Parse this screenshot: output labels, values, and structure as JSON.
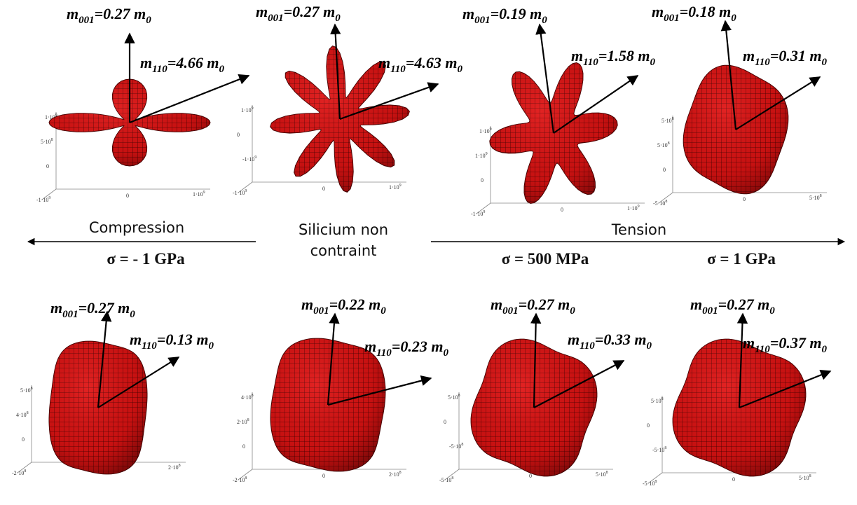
{
  "panels": [
    {
      "m001": {
        "symbol": "m",
        "index": "001",
        "value": "=0.27 ",
        "unit": "m",
        "unit_index": "0"
      },
      "m110": {
        "symbol": "m",
        "index": "110",
        "value": "=4.66 ",
        "unit": "m",
        "unit_index": "0"
      },
      "ticks": [
        {
          "text": "1·10",
          "exp": "9"
        },
        {
          "text": "5·10",
          "exp": "8"
        },
        "0",
        {
          "text": "-1·10",
          "exp": "9"
        },
        "0",
        {
          "text": "1·10",
          "exp": "9"
        }
      ]
    },
    {
      "m001": {
        "symbol": "m",
        "index": "001",
        "value": "=0.27 ",
        "unit": "m",
        "unit_index": "0"
      },
      "m110": {
        "symbol": "m",
        "index": "110",
        "value": "=4.63 ",
        "unit": "m",
        "unit_index": "0"
      },
      "ticks": [
        {
          "text": "1·10",
          "exp": "9"
        },
        "0",
        {
          "text": "-1·10",
          "exp": "9"
        },
        {
          "text": "-1·10",
          "exp": "9"
        },
        "0",
        {
          "text": "1·10",
          "exp": "9"
        }
      ]
    },
    {
      "m001": {
        "symbol": "m",
        "index": "001",
        "value": "=0.19 ",
        "unit": "m",
        "unit_index": "0"
      },
      "m110": {
        "symbol": "m",
        "index": "110",
        "value": "=1.58 ",
        "unit": "m",
        "unit_index": "0"
      },
      "ticks": [
        {
          "text": "1·10",
          "exp": "9"
        },
        {
          "text": "1·10",
          "exp": "9"
        },
        "0",
        {
          "text": "-1·10",
          "exp": "9"
        },
        "0",
        {
          "text": "1·10",
          "exp": "9"
        }
      ]
    },
    {
      "m001": {
        "symbol": "m",
        "index": "001",
        "value": "=0.18 ",
        "unit": "m",
        "unit_index": "0"
      },
      "m110": {
        "symbol": "m",
        "index": "110",
        "value": "=0.31 ",
        "unit": "m",
        "unit_index": "0"
      },
      "ticks": [
        {
          "text": "5·10",
          "exp": "8"
        },
        {
          "text": "5·10",
          "exp": "8"
        },
        "0",
        {
          "text": "-5·10",
          "exp": "8"
        },
        "0",
        {
          "text": "5·10",
          "exp": "8"
        }
      ]
    },
    {
      "m001": {
        "symbol": "m",
        "index": "001",
        "value": "=0.27 ",
        "unit": "m",
        "unit_index": "0"
      },
      "m110": {
        "symbol": "m",
        "index": "110",
        "value": "=0.13 ",
        "unit": "m",
        "unit_index": "0"
      },
      "ticks": [
        {
          "text": "5·10",
          "exp": "8"
        },
        {
          "text": "4·10",
          "exp": "8"
        },
        "0",
        {
          "text": "-2·10",
          "exp": "8"
        },
        "0",
        {
          "text": "2·10",
          "exp": "8"
        }
      ]
    },
    {
      "m001": {
        "symbol": "m",
        "index": "001",
        "value": "=0.22 ",
        "unit": "m",
        "unit_index": "0"
      },
      "m110": {
        "symbol": "m",
        "index": "110",
        "value": "=0.23 ",
        "unit": "m",
        "unit_index": "0"
      },
      "ticks": [
        {
          "text": "4·10",
          "exp": "8"
        },
        {
          "text": "2·10",
          "exp": "8"
        },
        "0",
        {
          "text": "-2·10",
          "exp": "8"
        },
        "0",
        {
          "text": "2·10",
          "exp": "8"
        }
      ]
    },
    {
      "m001": {
        "symbol": "m",
        "index": "001",
        "value": "=0.27 ",
        "unit": "m",
        "unit_index": "0"
      },
      "m110": {
        "symbol": "m",
        "index": "110",
        "value": "=0.33 ",
        "unit": "m",
        "unit_index": "0"
      },
      "ticks": [
        {
          "text": "5·10",
          "exp": "8"
        },
        "0",
        {
          "text": "-5·10",
          "exp": "8"
        },
        {
          "text": "-5·10",
          "exp": "8"
        },
        "0",
        {
          "text": "5·10",
          "exp": "8"
        }
      ]
    },
    {
      "m001": {
        "symbol": "m",
        "index": "001",
        "value": "=0.27 ",
        "unit": "m",
        "unit_index": "0"
      },
      "m110": {
        "symbol": "m",
        "index": "110",
        "value": "=0.37 ",
        "unit": "m",
        "unit_index": "0"
      },
      "ticks": [
        {
          "text": "5·10",
          "exp": "8"
        },
        "0",
        {
          "text": "-5·10",
          "exp": "8"
        },
        {
          "text": "-5·10",
          "exp": "8"
        },
        "0",
        {
          "text": "5·10",
          "exp": "8"
        }
      ]
    }
  ],
  "labels": {
    "compression": "Compression",
    "unstrained": [
      "Silicium non",
      "contraint"
    ],
    "tension": "Tension",
    "sigma_compression": "σ = - 1 GPa",
    "sigma_tension_1": "σ = 500 MPa",
    "sigma_tension_2": "σ = 1 GPa"
  }
}
